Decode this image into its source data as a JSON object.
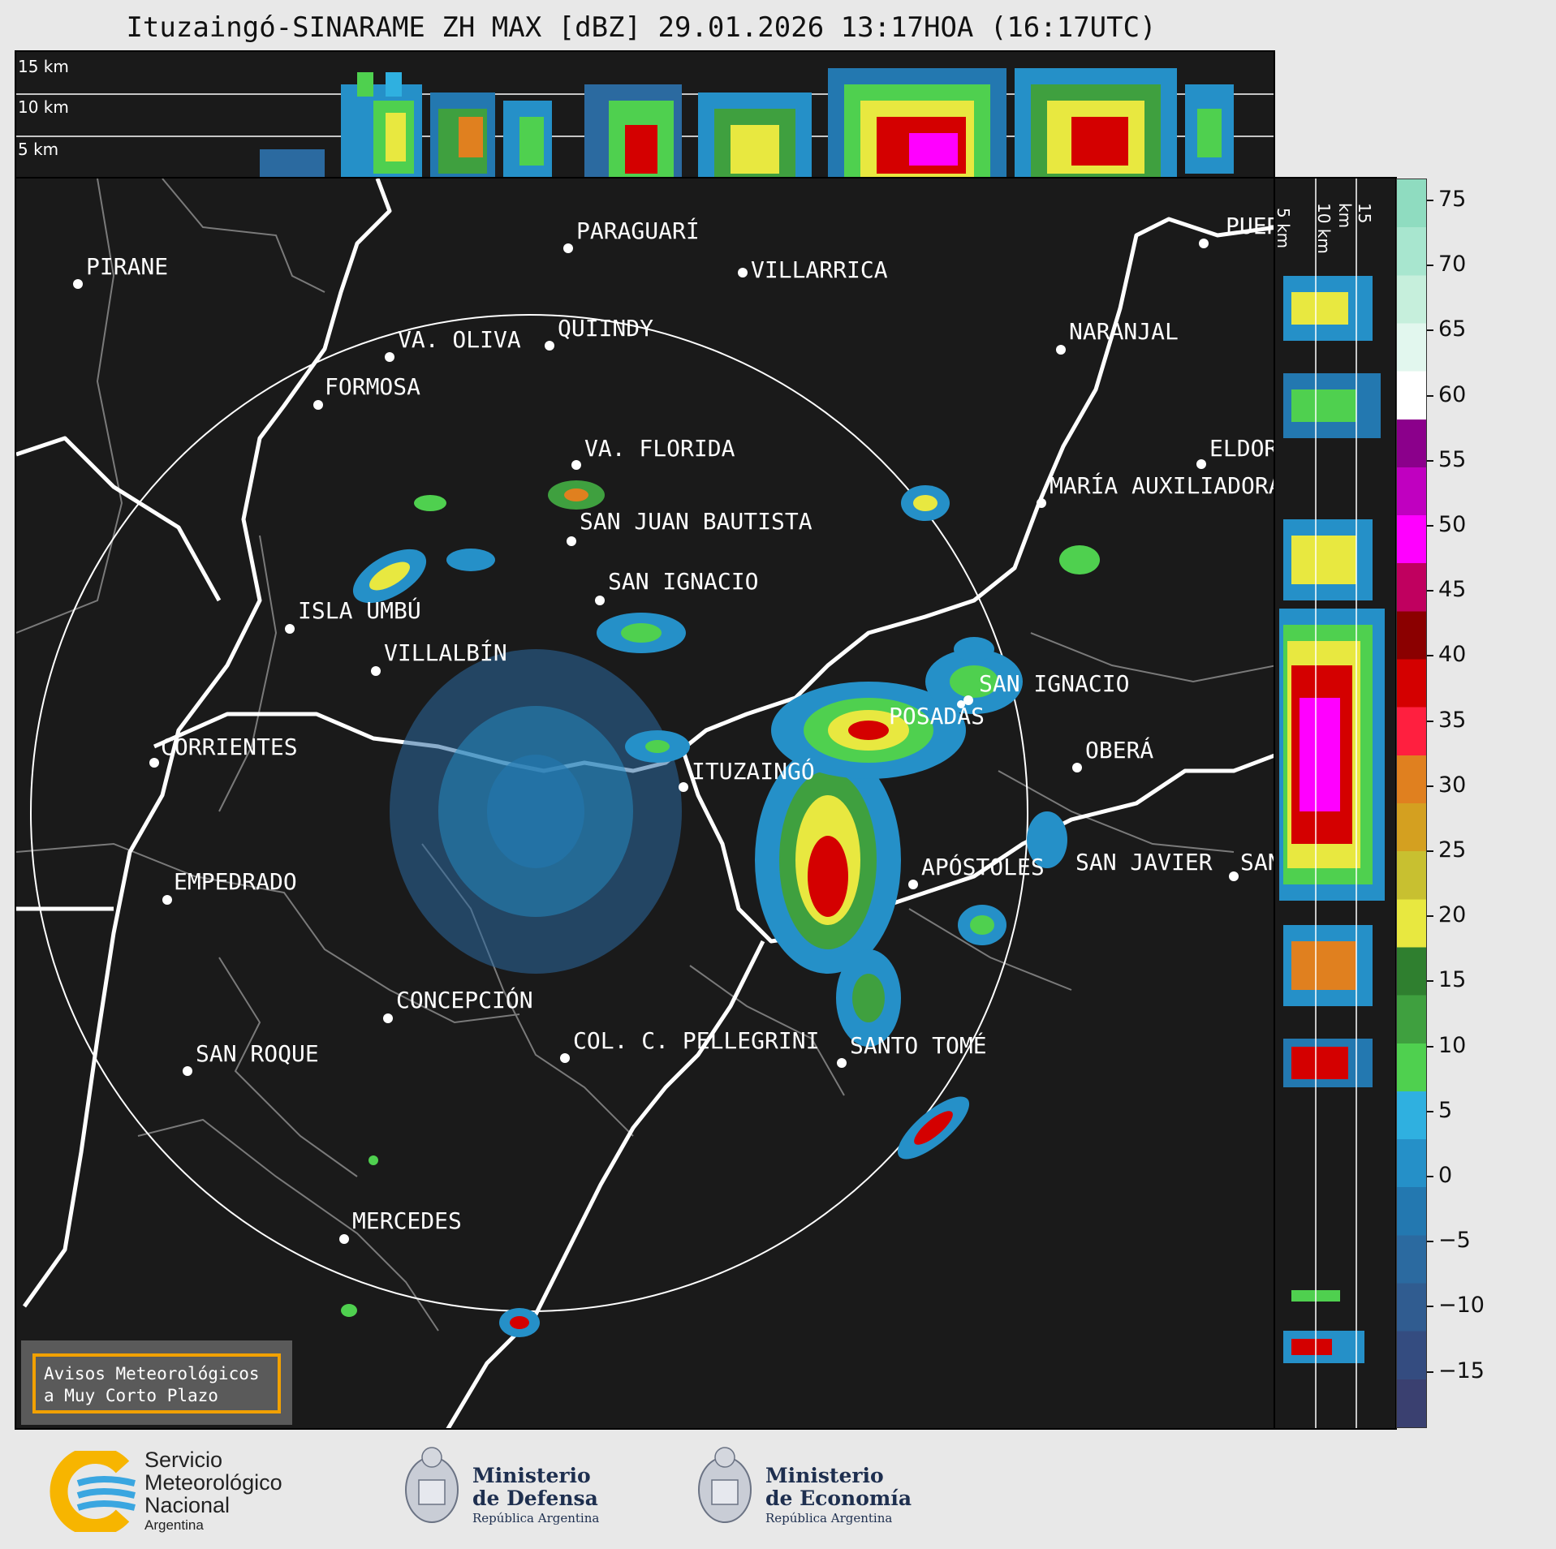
{
  "title": "Ituzaingó-SINARAME ZH MAX [dBZ] 29.01.2026 13:17HOA (16:17UTC)",
  "top_profile": {
    "altitudes": [
      "15 km",
      "10 km",
      "5 km"
    ]
  },
  "side_profile": {
    "altitudes": [
      "5 km",
      "10 km",
      "15 km"
    ]
  },
  "colorbar": {
    "ticks": [
      "75",
      "70",
      "65",
      "60",
      "55",
      "50",
      "45",
      "40",
      "35",
      "30",
      "25",
      "20",
      "15",
      "10",
      "5",
      "0",
      "−5",
      "−10",
      "−15"
    ],
    "colors": [
      "#8fdcc0",
      "#a8e6cf",
      "#c6efdc",
      "#e2f7ee",
      "#ffffff",
      "#8b008b",
      "#c000c0",
      "#ff00ff",
      "#c0005f",
      "#8b0000",
      "#d40000",
      "#ff1f3f",
      "#e0801f",
      "#d4a020",
      "#c8c030",
      "#e8e840",
      "#2f7f2f",
      "#3fa03f",
      "#4fd04f",
      "#2fb0e0",
      "#2590c8",
      "#2378b0",
      "#2b6aa0",
      "#305c90",
      "#344c80",
      "#3a4070"
    ]
  },
  "cities": [
    {
      "name": "PARAGUARÍ"
    },
    {
      "name": "VILLARRICA"
    },
    {
      "name": "PIRANE"
    },
    {
      "name": "QUIINDY"
    },
    {
      "name": "VA. OLIVA"
    },
    {
      "name": "NARANJAL"
    },
    {
      "name": "FORMOSA"
    },
    {
      "name": "VA. FLORIDA"
    },
    {
      "name": "ELDORADO"
    },
    {
      "name": "MARÍA AUXILIADORA"
    },
    {
      "name": "SAN JUAN BAUTISTA"
    },
    {
      "name": "SAN IGNACIO"
    },
    {
      "name": "ISLA UMBÚ"
    },
    {
      "name": "VILLALBÍN"
    },
    {
      "name": "SAN IGNACIO"
    },
    {
      "name": "POSADAS"
    },
    {
      "name": "CORRIENTES"
    },
    {
      "name": "ITUZAINGÓ"
    },
    {
      "name": "OBERÁ"
    },
    {
      "name": "APÓSTOLES"
    },
    {
      "name": "SAN JAVIER"
    },
    {
      "name": "SAN"
    },
    {
      "name": "EMPEDRADO"
    },
    {
      "name": "CONCEPCIÓN"
    },
    {
      "name": "COL. C. PELLEGRINI"
    },
    {
      "name": "SANTO TOMÉ"
    },
    {
      "name": "SAN ROQUE"
    },
    {
      "name": "MERCEDES"
    },
    {
      "name": "PUERTO"
    }
  ],
  "warning": {
    "line1": "Avisos Meteorológicos",
    "line2": "a Muy Corto Plazo"
  },
  "logos": {
    "smn": {
      "line1": "Servicio",
      "line2": "Meteorológico",
      "line3": "Nacional",
      "line4": "Argentina"
    },
    "defensa": {
      "line1": "Ministerio",
      "line2": "de Defensa",
      "line3": "República Argentina"
    },
    "economia": {
      "line1": "Ministerio",
      "line2": "de Economía",
      "line3": "República Argentina"
    }
  }
}
